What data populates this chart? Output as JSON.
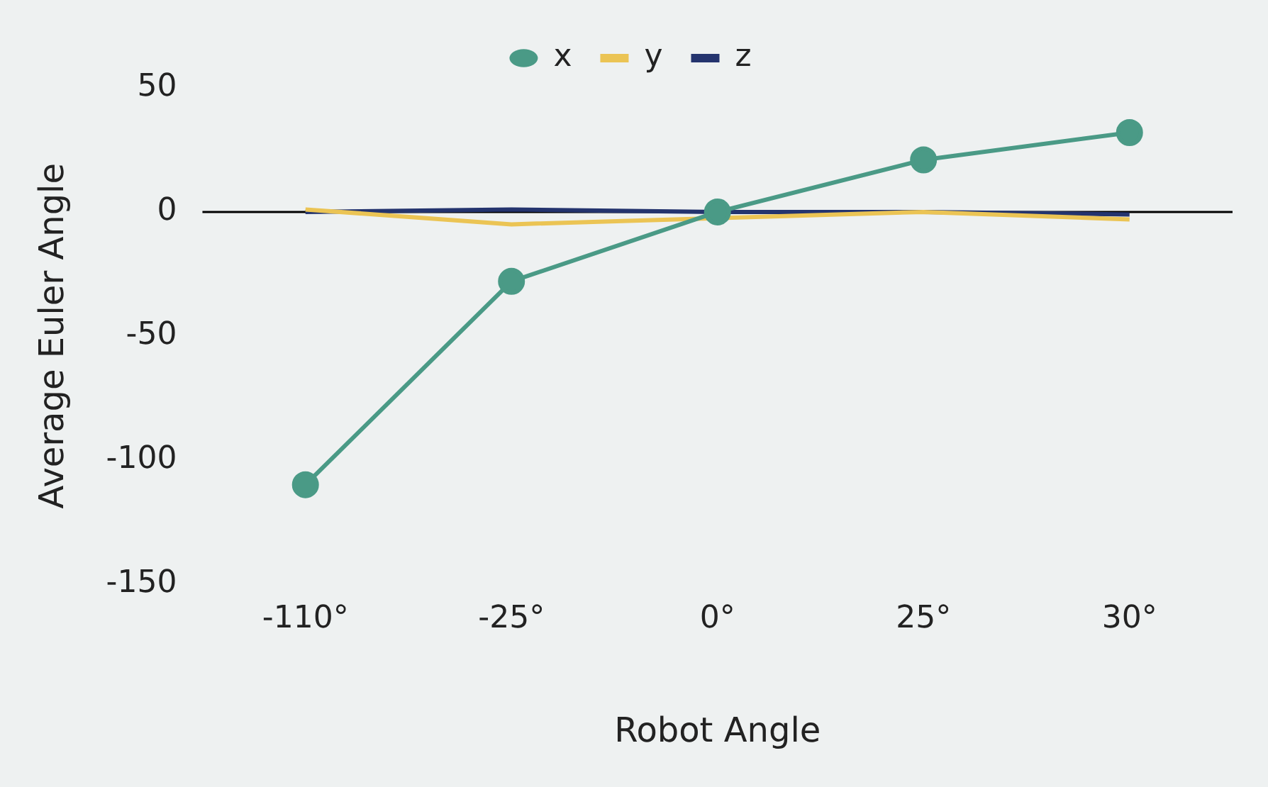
{
  "chart_data": {
    "type": "line",
    "xlabel": "Robot Angle",
    "ylabel": "Average Euler Angle",
    "categories": [
      "-110°",
      "-25°",
      "0°",
      "25°",
      "30°"
    ],
    "series": [
      {
        "name": "x",
        "color": "#4a9a86",
        "marker": "circle",
        "values": [
          -110,
          -28,
          0,
          21,
          32
        ]
      },
      {
        "name": "y",
        "color": "#ebc454",
        "marker": "none",
        "values": [
          1,
          -5,
          null,
          0,
          -3
        ]
      },
      {
        "name": "z",
        "color": "#24346e",
        "marker": "none",
        "values": [
          0,
          1,
          0,
          0,
          -1
        ]
      }
    ],
    "ylim": [
      -150,
      50
    ],
    "yticks": [
      -150,
      -100,
      -50,
      0,
      50
    ],
    "grid": false,
    "legend": "top",
    "ref_lines": [
      {
        "axis": "y",
        "value": 0,
        "color": "#000000"
      }
    ]
  }
}
